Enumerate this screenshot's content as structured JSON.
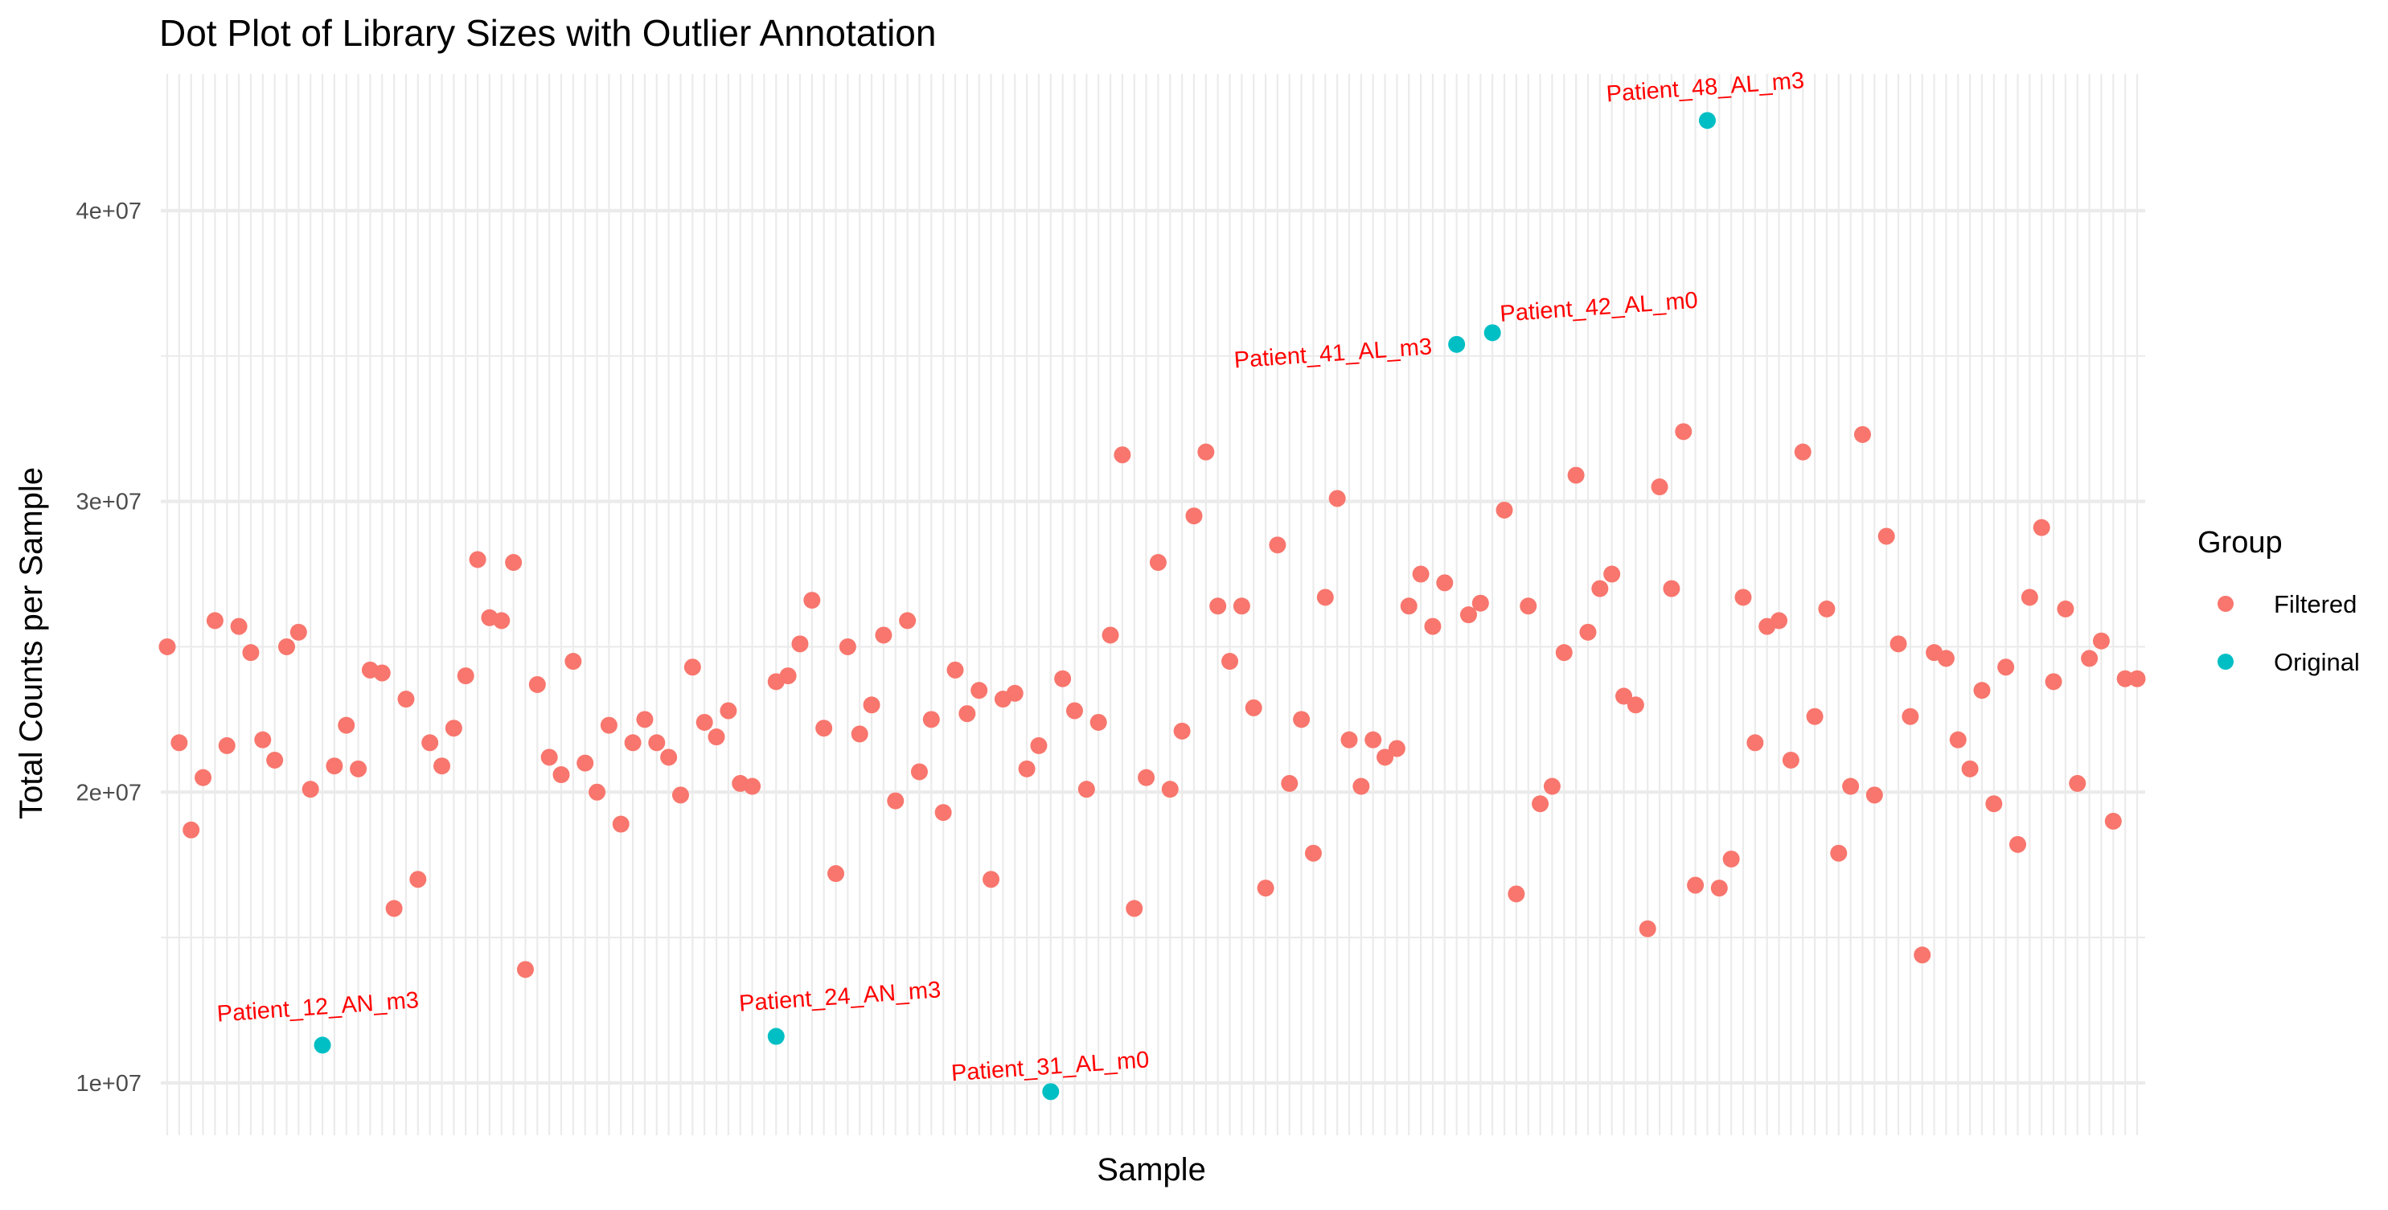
{
  "chart_data": {
    "type": "scatter",
    "title": "Dot Plot of Library Sizes with Outlier Annotation",
    "xlabel": "Sample",
    "ylabel": "Total Counts per Sample",
    "ylim": [
      8200000,
      44700000
    ],
    "y_ticks": [
      10000000,
      20000000,
      30000000,
      40000000
    ],
    "y_tick_labels": [
      "1e+07",
      "2e+07",
      "3e+07",
      "4e+07"
    ],
    "x_tick_labels_shown": false,
    "grid": true,
    "legend": {
      "title": "Group",
      "position": "right",
      "entries": [
        {
          "label": "Filtered",
          "color": "#F8766D"
        },
        {
          "label": "Original",
          "color": "#00BFC4"
        }
      ]
    },
    "annotation_color": "#FF0000",
    "series": [
      {
        "name": "Filtered",
        "color": "#F8766D",
        "points": [
          {
            "x": 1,
            "y": 25000000
          },
          {
            "x": 2,
            "y": 21700000
          },
          {
            "x": 3,
            "y": 18700000
          },
          {
            "x": 4,
            "y": 20500000
          },
          {
            "x": 5,
            "y": 25900000
          },
          {
            "x": 6,
            "y": 21600000
          },
          {
            "x": 7,
            "y": 25700000
          },
          {
            "x": 8,
            "y": 24800000
          },
          {
            "x": 9,
            "y": 21800000
          },
          {
            "x": 10,
            "y": 21100000
          },
          {
            "x": 11,
            "y": 25000000
          },
          {
            "x": 12,
            "y": 25500000
          },
          {
            "x": 13,
            "y": 20100000
          },
          {
            "x": 15,
            "y": 20900000
          },
          {
            "x": 16,
            "y": 22300000
          },
          {
            "x": 17,
            "y": 20800000
          },
          {
            "x": 18,
            "y": 24200000
          },
          {
            "x": 19,
            "y": 24100000
          },
          {
            "x": 20,
            "y": 16000000
          },
          {
            "x": 21,
            "y": 23200000
          },
          {
            "x": 22,
            "y": 17000000
          },
          {
            "x": 23,
            "y": 21700000
          },
          {
            "x": 24,
            "y": 20900000
          },
          {
            "x": 25,
            "y": 22200000
          },
          {
            "x": 26,
            "y": 24000000
          },
          {
            "x": 27,
            "y": 28000000
          },
          {
            "x": 28,
            "y": 26000000
          },
          {
            "x": 29,
            "y": 25900000
          },
          {
            "x": 30,
            "y": 27900000
          },
          {
            "x": 31,
            "y": 13900000
          },
          {
            "x": 32,
            "y": 23700000
          },
          {
            "x": 33,
            "y": 21200000
          },
          {
            "x": 34,
            "y": 20600000
          },
          {
            "x": 35,
            "y": 24500000
          },
          {
            "x": 36,
            "y": 21000000
          },
          {
            "x": 37,
            "y": 20000000
          },
          {
            "x": 38,
            "y": 22300000
          },
          {
            "x": 39,
            "y": 18900000
          },
          {
            "x": 40,
            "y": 21700000
          },
          {
            "x": 41,
            "y": 22500000
          },
          {
            "x": 42,
            "y": 21700000
          },
          {
            "x": 43,
            "y": 21200000
          },
          {
            "x": 44,
            "y": 19900000
          },
          {
            "x": 45,
            "y": 24300000
          },
          {
            "x": 46,
            "y": 22400000
          },
          {
            "x": 47,
            "y": 21900000
          },
          {
            "x": 48,
            "y": 22800000
          },
          {
            "x": 49,
            "y": 20300000
          },
          {
            "x": 50,
            "y": 20200000
          },
          {
            "x": 52,
            "y": 23800000
          },
          {
            "x": 53,
            "y": 24000000
          },
          {
            "x": 54,
            "y": 25100000
          },
          {
            "x": 55,
            "y": 26600000
          },
          {
            "x": 56,
            "y": 22200000
          },
          {
            "x": 57,
            "y": 17200000
          },
          {
            "x": 58,
            "y": 25000000
          },
          {
            "x": 59,
            "y": 22000000
          },
          {
            "x": 60,
            "y": 23000000
          },
          {
            "x": 61,
            "y": 25400000
          },
          {
            "x": 62,
            "y": 19700000
          },
          {
            "x": 63,
            "y": 25900000
          },
          {
            "x": 64,
            "y": 20700000
          },
          {
            "x": 65,
            "y": 22500000
          },
          {
            "x": 66,
            "y": 19300000
          },
          {
            "x": 67,
            "y": 24200000
          },
          {
            "x": 68,
            "y": 22700000
          },
          {
            "x": 69,
            "y": 23500000
          },
          {
            "x": 70,
            "y": 17000000
          },
          {
            "x": 71,
            "y": 23200000
          },
          {
            "x": 72,
            "y": 23400000
          },
          {
            "x": 73,
            "y": 20800000
          },
          {
            "x": 74,
            "y": 21600000
          },
          {
            "x": 76,
            "y": 23900000
          },
          {
            "x": 77,
            "y": 22800000
          },
          {
            "x": 78,
            "y": 20100000
          },
          {
            "x": 79,
            "y": 22400000
          },
          {
            "x": 80,
            "y": 25400000
          },
          {
            "x": 81,
            "y": 31600000
          },
          {
            "x": 82,
            "y": 16000000
          },
          {
            "x": 83,
            "y": 20500000
          },
          {
            "x": 84,
            "y": 27900000
          },
          {
            "x": 85,
            "y": 20100000
          },
          {
            "x": 86,
            "y": 22100000
          },
          {
            "x": 87,
            "y": 29500000
          },
          {
            "x": 88,
            "y": 31700000
          },
          {
            "x": 89,
            "y": 26400000
          },
          {
            "x": 90,
            "y": 24500000
          },
          {
            "x": 91,
            "y": 26400000
          },
          {
            "x": 92,
            "y": 22900000
          },
          {
            "x": 93,
            "y": 16700000
          },
          {
            "x": 94,
            "y": 28500000
          },
          {
            "x": 95,
            "y": 20300000
          },
          {
            "x": 96,
            "y": 22500000
          },
          {
            "x": 97,
            "y": 17900000
          },
          {
            "x": 98,
            "y": 26700000
          },
          {
            "x": 99,
            "y": 30100000
          },
          {
            "x": 100,
            "y": 21800000
          },
          {
            "x": 101,
            "y": 20200000
          },
          {
            "x": 102,
            "y": 21800000
          },
          {
            "x": 103,
            "y": 21200000
          },
          {
            "x": 104,
            "y": 21500000
          },
          {
            "x": 105,
            "y": 26400000
          },
          {
            "x": 106,
            "y": 27500000
          },
          {
            "x": 107,
            "y": 25700000
          },
          {
            "x": 108,
            "y": 27200000
          },
          {
            "x": 110,
            "y": 26100000
          },
          {
            "x": 111,
            "y": 26500000
          },
          {
            "x": 113,
            "y": 29700000
          },
          {
            "x": 114,
            "y": 16500000
          },
          {
            "x": 115,
            "y": 26400000
          },
          {
            "x": 116,
            "y": 19600000
          },
          {
            "x": 117,
            "y": 20200000
          },
          {
            "x": 118,
            "y": 24800000
          },
          {
            "x": 119,
            "y": 30900000
          },
          {
            "x": 120,
            "y": 25500000
          },
          {
            "x": 121,
            "y": 27000000
          },
          {
            "x": 122,
            "y": 27500000
          },
          {
            "x": 123,
            "y": 23300000
          },
          {
            "x": 124,
            "y": 23000000
          },
          {
            "x": 125,
            "y": 15300000
          },
          {
            "x": 126,
            "y": 30500000
          },
          {
            "x": 127,
            "y": 27000000
          },
          {
            "x": 128,
            "y": 32400000
          },
          {
            "x": 129,
            "y": 16800000
          },
          {
            "x": 131,
            "y": 16700000
          },
          {
            "x": 132,
            "y": 17700000
          },
          {
            "x": 133,
            "y": 26700000
          },
          {
            "x": 134,
            "y": 21700000
          },
          {
            "x": 135,
            "y": 25700000
          },
          {
            "x": 136,
            "y": 25900000
          },
          {
            "x": 137,
            "y": 21100000
          },
          {
            "x": 138,
            "y": 31700000
          },
          {
            "x": 139,
            "y": 22600000
          },
          {
            "x": 140,
            "y": 26300000
          },
          {
            "x": 141,
            "y": 17900000
          },
          {
            "x": 142,
            "y": 20200000
          },
          {
            "x": 143,
            "y": 32300000
          },
          {
            "x": 144,
            "y": 19900000
          },
          {
            "x": 145,
            "y": 28800000
          },
          {
            "x": 146,
            "y": 25100000
          },
          {
            "x": 147,
            "y": 22600000
          },
          {
            "x": 148,
            "y": 14400000
          },
          {
            "x": 149,
            "y": 24800000
          },
          {
            "x": 150,
            "y": 24600000
          },
          {
            "x": 151,
            "y": 21800000
          },
          {
            "x": 152,
            "y": 20800000
          },
          {
            "x": 153,
            "y": 23500000
          },
          {
            "x": 154,
            "y": 19600000
          },
          {
            "x": 155,
            "y": 24300000
          },
          {
            "x": 156,
            "y": 18200000
          },
          {
            "x": 157,
            "y": 26700000
          },
          {
            "x": 158,
            "y": 29100000
          },
          {
            "x": 159,
            "y": 23800000
          },
          {
            "x": 160,
            "y": 26300000
          },
          {
            "x": 161,
            "y": 20300000
          },
          {
            "x": 162,
            "y": 24600000
          },
          {
            "x": 163,
            "y": 25200000
          },
          {
            "x": 164,
            "y": 19000000
          },
          {
            "x": 165,
            "y": 23900000
          },
          {
            "x": 166,
            "y": 23900000
          }
        ]
      },
      {
        "name": "Original",
        "color": "#00BFC4",
        "points": [
          {
            "x": 14,
            "y": 11300000,
            "label": "Patient_12_AN_m3"
          },
          {
            "x": 52,
            "y": 11600000,
            "label": "Patient_24_AN_m3"
          },
          {
            "x": 75,
            "y": 9700000,
            "label": "Patient_31_AL_m0"
          },
          {
            "x": 109,
            "y": 35400000,
            "label": "Patient_41_AL_m3"
          },
          {
            "x": 112,
            "y": 35800000,
            "label": "Patient_42_AL_m0"
          },
          {
            "x": 130,
            "y": 43100000,
            "label": "Patient_48_AL_m3"
          }
        ]
      }
    ]
  }
}
